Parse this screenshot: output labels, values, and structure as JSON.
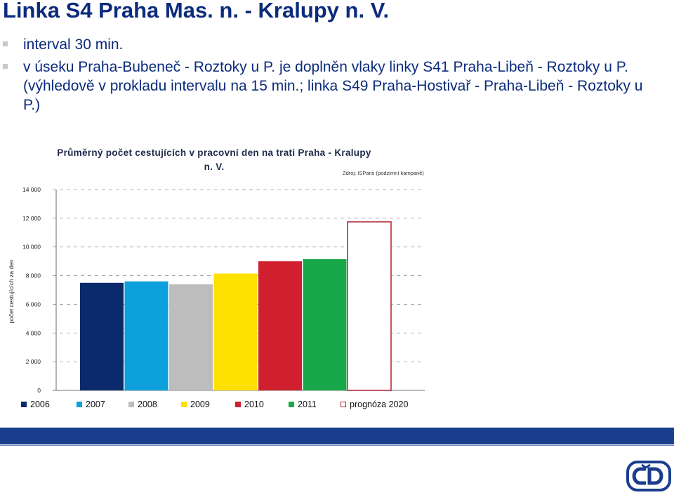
{
  "slide": {
    "title": "Linka S4 Praha Mas. n. - Kralupy n. V.",
    "bullets": [
      "interval 30 min.",
      "v úseku Praha-Bubeneč - Roztoky u P. je doplněn vlaky linky S41 Praha-Libeň - Roztoky u P. (výhledově v prokladu intervalu na 15 min.; linka S49 Praha-Hostivař - Praha-Libeň - Roztoky u P.)"
    ],
    "logo_icon": "cd-logo-icon",
    "colors": {
      "title": "#0b2b7c",
      "footer_bar": "#1a3e8c"
    }
  },
  "chart_data": {
    "type": "bar",
    "title": "Průměrný počet cestujících v pracovní den na trati Praha - Kralupy n. V.",
    "source_note": "Zdroj: ISParis (podzimní kampaně)",
    "ylabel": "počet cestujících za den",
    "xlabel": "",
    "ylim": [
      0,
      14000
    ],
    "yticks": [
      0,
      2000,
      4000,
      6000,
      8000,
      10000,
      12000,
      14000
    ],
    "ytick_labels": [
      "0",
      "2 000",
      "4 000",
      "6 000",
      "8 000",
      "10 000",
      "12 000",
      "14 000"
    ],
    "grid": true,
    "legend_position": "bottom",
    "series": [
      {
        "name": "2006",
        "value": 7500,
        "color": "#0b2a6b",
        "fill": true
      },
      {
        "name": "2007",
        "value": 7600,
        "color": "#0ea0dc",
        "fill": true
      },
      {
        "name": "2008",
        "value": 7400,
        "color": "#bdbdbd",
        "fill": true
      },
      {
        "name": "2009",
        "value": 8150,
        "color": "#ffe100",
        "fill": true
      },
      {
        "name": "2010",
        "value": 9000,
        "color": "#d0202f",
        "fill": true
      },
      {
        "name": "2011",
        "value": 9150,
        "color": "#18a84a",
        "fill": true
      },
      {
        "name": "prognóza 2020",
        "value": 11750,
        "color": "#b01e2e",
        "fill": false
      }
    ]
  }
}
